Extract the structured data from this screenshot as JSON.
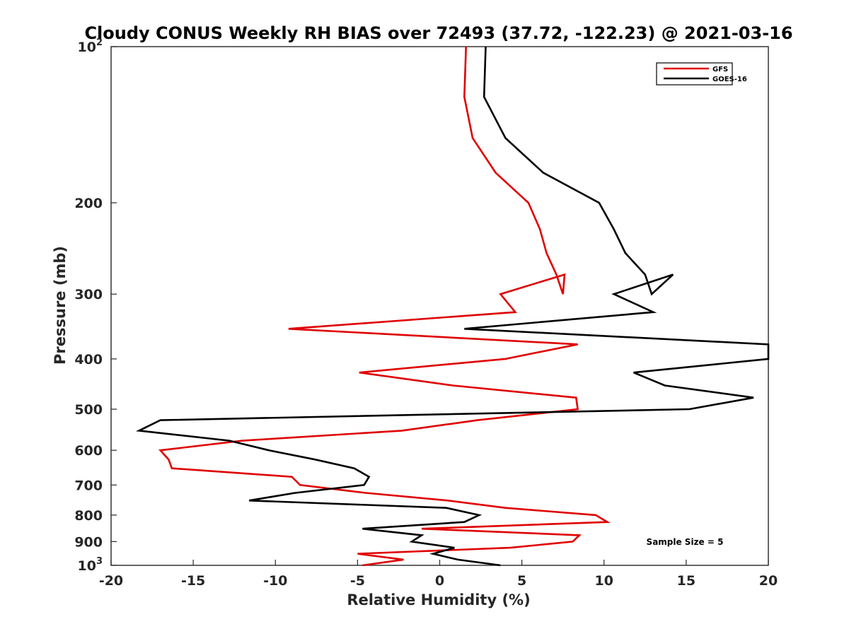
{
  "chart_data": {
    "type": "line",
    "title": "Cloudy CONUS Weekly RH BIAS over 72493 (37.72, -122.23) @ 2021-03-16",
    "xlabel": "Relative Humidity (%)",
    "ylabel": "Pressure (mb)",
    "xlim": [
      -20,
      20
    ],
    "ylim": [
      100,
      1000
    ],
    "y_scale": "log",
    "y_reversed": true,
    "grid": false,
    "legend_position": "top-right",
    "x_ticks": [
      "-20",
      "-15",
      "-10",
      "-5",
      "0",
      "5",
      "10",
      "15",
      "20"
    ],
    "y_ticks": [
      {
        "value": 100,
        "base": "10",
        "exp": "2"
      },
      {
        "value": 200,
        "label": "200"
      },
      {
        "value": 300,
        "label": "300"
      },
      {
        "value": 400,
        "label": "400"
      },
      {
        "value": 500,
        "label": "500"
      },
      {
        "value": 600,
        "label": "600"
      },
      {
        "value": 700,
        "label": "700"
      },
      {
        "value": 800,
        "label": "800"
      },
      {
        "value": 900,
        "label": "900"
      },
      {
        "value": 1000,
        "base": "10",
        "exp": "3"
      }
    ],
    "annotation": "Sample Size = 5",
    "series": [
      {
        "name": "GFS",
        "color": "#e00000",
        "points": [
          [
            1.6,
            100
          ],
          [
            1.5,
            125
          ],
          [
            2.0,
            150
          ],
          [
            3.4,
            175
          ],
          [
            5.4,
            200
          ],
          [
            6.1,
            225
          ],
          [
            6.5,
            250
          ],
          [
            7.1,
            275
          ],
          [
            7.5,
            300
          ],
          [
            7.6,
            275
          ],
          [
            3.7,
            300
          ],
          [
            4.6,
            325
          ],
          [
            -9.2,
            350
          ],
          [
            8.4,
            375
          ],
          [
            4.0,
            400
          ],
          [
            -4.9,
            425
          ],
          [
            0.8,
            450
          ],
          [
            8.3,
            475
          ],
          [
            8.4,
            500
          ],
          [
            2.3,
            525
          ],
          [
            -2.3,
            550
          ],
          [
            -12.0,
            575
          ],
          [
            -17.0,
            600
          ],
          [
            -16.5,
            625
          ],
          [
            -16.3,
            650
          ],
          [
            -9.0,
            675
          ],
          [
            -8.5,
            700
          ],
          [
            -4.5,
            725
          ],
          [
            0.5,
            750
          ],
          [
            4.0,
            775
          ],
          [
            9.5,
            800
          ],
          [
            10.2,
            825
          ],
          [
            -1.1,
            850
          ],
          [
            8.5,
            875
          ],
          [
            8.1,
            900
          ],
          [
            4.3,
            925
          ],
          [
            -5.0,
            950
          ],
          [
            -2.2,
            975
          ],
          [
            -4.7,
            1000
          ]
        ]
      },
      {
        "name": "GOES-16",
        "color": "#000000",
        "points": [
          [
            2.8,
            100
          ],
          [
            2.7,
            125
          ],
          [
            4.0,
            150
          ],
          [
            6.3,
            175
          ],
          [
            9.7,
            200
          ],
          [
            10.6,
            225
          ],
          [
            11.3,
            250
          ],
          [
            12.5,
            275
          ],
          [
            12.9,
            300
          ],
          [
            14.2,
            275
          ],
          [
            10.6,
            300
          ],
          [
            13.0,
            325
          ],
          [
            1.5,
            350
          ],
          [
            20.0,
            375
          ],
          [
            20.0,
            400
          ],
          [
            11.8,
            425
          ],
          [
            13.7,
            450
          ],
          [
            19.1,
            475
          ],
          [
            15.2,
            500
          ],
          [
            -17.0,
            525
          ],
          [
            -18.3,
            550
          ],
          [
            -12.8,
            575
          ],
          [
            -10.4,
            600
          ],
          [
            -7.6,
            625
          ],
          [
            -5.2,
            650
          ],
          [
            -4.3,
            675
          ],
          [
            -4.6,
            700
          ],
          [
            -8.8,
            725
          ],
          [
            -11.6,
            750
          ],
          [
            0.4,
            775
          ],
          [
            2.4,
            800
          ],
          [
            1.5,
            825
          ],
          [
            -4.7,
            850
          ],
          [
            -1.1,
            875
          ],
          [
            -1.7,
            900
          ],
          [
            0.9,
            925
          ],
          [
            -0.4,
            950
          ],
          [
            1.1,
            975
          ],
          [
            3.7,
            1000
          ]
        ]
      }
    ]
  }
}
